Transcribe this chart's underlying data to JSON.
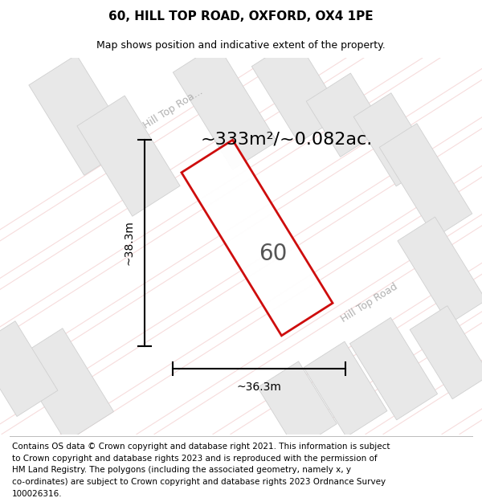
{
  "title": "60, HILL TOP ROAD, OXFORD, OX4 1PE",
  "subtitle": "Map shows position and indicative extent of the property.",
  "area_label": "~333m²/~0.082ac.",
  "property_label": "60",
  "dim_horizontal": "~36.3m",
  "dim_vertical": "~38.3m",
  "road_label_upper": "Hill Top Roa...",
  "road_label_lower": "Hill Top Road",
  "footer_line1": "Contains OS data © Crown copyright and database right 2021. This information is subject",
  "footer_line2": "to Crown copyright and database rights 2023 and is reproduced with the permission of",
  "footer_line3": "HM Land Registry. The polygons (including the associated geometry, namely x, y",
  "footer_line4": "co-ordinates) are subject to Crown copyright and database rights 2023 Ordnance Survey",
  "footer_line5": "100026316.",
  "bg_color": "#f8f8f8",
  "map_bg": "#ffffff",
  "block_color": "#e0e0e0",
  "block_edge": "#c8c8c8",
  "hatch_color": "#f0c0c0",
  "hatch_color2": "#f8d8d8",
  "road_color": "#cccccc",
  "dim_color": "#000000",
  "title_fontsize": 11,
  "subtitle_fontsize": 9,
  "footer_fontsize": 7.5,
  "area_fontsize": 16,
  "prop_label_fontsize": 20,
  "road_fontsize": 9,
  "dim_fontsize": 10
}
